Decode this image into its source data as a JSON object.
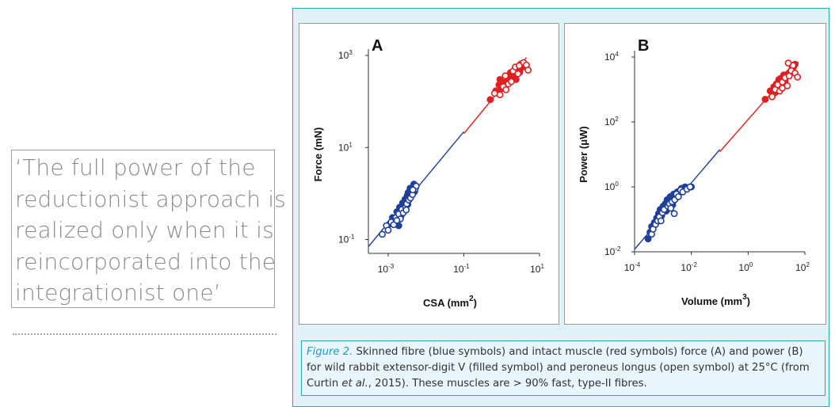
{
  "pull_quote": {
    "lines": [
      "‘The full power of the",
      "reductionist approach is",
      "realized only when it is",
      "reincorporated into the",
      "integrationist one’"
    ]
  },
  "caption": {
    "figure_label": "Figure 2.",
    "text_1": " Skinned fibre (blue symbols) and intact muscle (red symbols) force (A) and power (B) for wild rabbit extensor-digit V (filled symbol) and peroneus longus (open symbol) at 25°C (from Curtin ",
    "et_al": "et al.",
    "text_2": ", 2015). These muscles are > 90% fast, type-II fibres."
  },
  "colors": {
    "skinned": "#1f3f9a",
    "intact": "#e02020",
    "panel_border": "#2aa6bd",
    "panel_bg": "#dff2f8"
  },
  "chart_data": [
    {
      "type": "scatter",
      "panel_label": "A",
      "xlabel_main": "CSA (mm",
      "xlabel_sup": "2",
      "xlabel_end": ")",
      "ylabel": "Force (mN)",
      "x_scale": "log",
      "y_scale": "log",
      "xlim": [
        0.0003,
        10
      ],
      "ylim": [
        0.05,
        1000
      ],
      "x_ticks": [
        {
          "v": 0.001,
          "base": "10",
          "exp": "-3"
        },
        {
          "v": 0.1,
          "base": "10",
          "exp": "-1"
        },
        {
          "v": 10,
          "base": "10",
          "exp": "1"
        }
      ],
      "y_ticks": [
        {
          "v": 0.1,
          "base": "10",
          "exp": "-1"
        },
        {
          "v": 10,
          "base": "10",
          "exp": "1"
        },
        {
          "v": 1000,
          "base": "10",
          "exp": "3"
        }
      ],
      "fit_lines": [
        {
          "name": "skinned",
          "x": [
            0.0003,
            0.1
          ],
          "y": [
            0.07,
            22
          ]
        },
        {
          "name": "intact",
          "x": [
            0.1,
            4.5
          ],
          "y": [
            20,
            900
          ]
        }
      ],
      "series": [
        {
          "group": "skinned",
          "filled": true,
          "points": [
            [
              0.0011,
              0.22
            ],
            [
              0.0013,
              0.3
            ],
            [
              0.0015,
              0.26
            ],
            [
              0.0017,
              0.4
            ],
            [
              0.0018,
              0.32
            ],
            [
              0.002,
              0.5
            ],
            [
              0.0022,
              0.42
            ],
            [
              0.0024,
              0.62
            ],
            [
              0.0026,
              0.55
            ],
            [
              0.0028,
              0.75
            ],
            [
              0.003,
              0.66
            ],
            [
              0.0032,
              0.9
            ],
            [
              0.0034,
              1.05
            ],
            [
              0.0036,
              0.85
            ],
            [
              0.0038,
              1.3
            ],
            [
              0.0042,
              1.15
            ],
            [
              0.0046,
              1.4
            ],
            [
              0.005,
              1.1
            ],
            [
              0.0022,
              0.33
            ],
            [
              0.0027,
              0.48
            ],
            [
              0.0033,
              0.58
            ],
            [
              0.0041,
              0.92
            ],
            [
              0.0019,
              0.2
            ],
            [
              0.0048,
              1.6
            ]
          ]
        },
        {
          "group": "skinned",
          "filled": false,
          "points": [
            [
              0.0007,
              0.13
            ],
            [
              0.0009,
              0.2
            ],
            [
              0.001,
              0.16
            ],
            [
              0.0012,
              0.24
            ],
            [
              0.0014,
              0.21
            ],
            [
              0.0016,
              0.3
            ],
            [
              0.0019,
              0.36
            ],
            [
              0.0021,
              0.28
            ],
            [
              0.0023,
              0.45
            ],
            [
              0.0025,
              0.38
            ],
            [
              0.0029,
              0.5
            ],
            [
              0.0031,
              0.6
            ],
            [
              0.0035,
              0.72
            ],
            [
              0.0039,
              0.8
            ],
            [
              0.0044,
              0.95
            ],
            [
              0.0052,
              1.25
            ],
            [
              0.0055,
              1.45
            ],
            [
              0.003,
              0.44
            ],
            [
              0.0017,
              0.26
            ],
            [
              0.0045,
              1.2
            ]
          ]
        },
        {
          "group": "intact",
          "filled": true,
          "points": [
            [
              0.5,
              110
            ],
            [
              0.7,
              170
            ],
            [
              0.85,
              230
            ],
            [
              1.0,
              190
            ],
            [
              1.2,
              260
            ],
            [
              1.4,
              320
            ],
            [
              1.6,
              290
            ],
            [
              1.9,
              380
            ],
            [
              2.2,
              350
            ],
            [
              2.6,
              470
            ],
            [
              3.0,
              430
            ],
            [
              3.4,
              540
            ],
            [
              0.9,
              300
            ],
            [
              1.7,
              420
            ],
            [
              2.4,
              300
            ]
          ]
        },
        {
          "group": "intact",
          "filled": false,
          "points": [
            [
              0.65,
              150
            ],
            [
              0.9,
              140
            ],
            [
              1.1,
              210
            ],
            [
              1.3,
              180
            ],
            [
              1.5,
              240
            ],
            [
              1.8,
              270
            ],
            [
              2.0,
              460
            ],
            [
              2.3,
              560
            ],
            [
              2.7,
              400
            ],
            [
              3.2,
              650
            ],
            [
              3.8,
              700
            ],
            [
              4.5,
              620
            ],
            [
              5.0,
              480
            ],
            [
              2.9,
              600
            ],
            [
              1.25,
              360
            ]
          ]
        }
      ]
    },
    {
      "type": "scatter",
      "panel_label": "B",
      "xlabel_main": "Volume (mm",
      "xlabel_sup": "3",
      "xlabel_end": ")",
      "ylabel": "Power (μW)",
      "x_scale": "log",
      "y_scale": "log",
      "xlim": [
        0.0001,
        100
      ],
      "ylim": [
        0.01,
        10000
      ],
      "x_ticks": [
        {
          "v": 0.0001,
          "base": "10",
          "exp": "-4"
        },
        {
          "v": 0.01,
          "base": "10",
          "exp": "-2"
        },
        {
          "v": 1,
          "base": "10",
          "exp": "0"
        },
        {
          "v": 100,
          "base": "10",
          "exp": "2"
        }
      ],
      "y_ticks": [
        {
          "v": 0.01,
          "base": "10",
          "exp": "-2"
        },
        {
          "v": 1,
          "base": "10",
          "exp": "0"
        },
        {
          "v": 100,
          "base": "10",
          "exp": "2"
        },
        {
          "v": 10000,
          "base": "10",
          "exp": "4"
        }
      ],
      "fit_lines": [
        {
          "name": "skinned",
          "x": [
            0.0001,
            0.1
          ],
          "y": [
            0.012,
            14
          ]
        },
        {
          "name": "intact",
          "x": [
            0.1,
            60
          ],
          "y": [
            12,
            7000
          ]
        }
      ],
      "series": [
        {
          "group": "skinned",
          "filled": true,
          "points": [
            [
              0.0003,
              0.025
            ],
            [
              0.00035,
              0.04
            ],
            [
              0.0004,
              0.06
            ],
            [
              0.0005,
              0.08
            ],
            [
              0.0006,
              0.11
            ],
            [
              0.0007,
              0.15
            ],
            [
              0.0008,
              0.2
            ],
            [
              0.0009,
              0.13
            ],
            [
              0.001,
              0.25
            ],
            [
              0.0012,
              0.3
            ],
            [
              0.0014,
              0.4
            ],
            [
              0.0016,
              0.35
            ],
            [
              0.0018,
              0.5
            ],
            [
              0.002,
              0.45
            ],
            [
              0.0024,
              0.6
            ],
            [
              0.0028,
              0.55
            ],
            [
              0.0032,
              0.7
            ],
            [
              0.0038,
              0.75
            ],
            [
              0.0045,
              0.9
            ],
            [
              0.006,
              1.0
            ],
            [
              0.008,
              0.95
            ],
            [
              0.01,
              1.0
            ],
            [
              0.0013,
              0.18
            ],
            [
              0.0022,
              0.28
            ]
          ]
        },
        {
          "group": "skinned",
          "filled": false,
          "points": [
            [
              0.0004,
              0.035
            ],
            [
              0.00045,
              0.05
            ],
            [
              0.00055,
              0.07
            ],
            [
              0.00065,
              0.09
            ],
            [
              0.00075,
              0.12
            ],
            [
              0.00085,
              0.09
            ],
            [
              0.00095,
              0.16
            ],
            [
              0.0011,
              0.2
            ],
            [
              0.0015,
              0.25
            ],
            [
              0.0017,
              0.3
            ],
            [
              0.0019,
              0.22
            ],
            [
              0.0021,
              0.35
            ],
            [
              0.0026,
              0.4
            ],
            [
              0.003,
              0.6
            ],
            [
              0.0035,
              0.5
            ],
            [
              0.0042,
              0.8
            ],
            [
              0.005,
              0.7
            ],
            [
              0.007,
              0.85
            ],
            [
              0.009,
              1.0
            ],
            [
              0.0025,
              0.15
            ]
          ]
        },
        {
          "group": "intact",
          "filled": true,
          "points": [
            [
              4,
              500
            ],
            [
              6,
              900
            ],
            [
              8,
              1200
            ],
            [
              10,
              1500
            ],
            [
              12,
              2000
            ],
            [
              14,
              2200
            ],
            [
              18,
              2800
            ],
            [
              25,
              3000
            ],
            [
              30,
              3500
            ],
            [
              35,
              4500
            ],
            [
              40,
              5000
            ],
            [
              45,
              6000
            ],
            [
              20,
              1800
            ],
            [
              9,
              800
            ]
          ]
        },
        {
          "group": "intact",
          "filled": false,
          "points": [
            [
              7,
              600
            ],
            [
              9,
              1000
            ],
            [
              11,
              1400
            ],
            [
              13,
              900
            ],
            [
              16,
              1700
            ],
            [
              20,
              2300
            ],
            [
              24,
              1300
            ],
            [
              28,
              2600
            ],
            [
              33,
              3800
            ],
            [
              38,
              5500
            ],
            [
              45,
              3200
            ],
            [
              55,
              2400
            ],
            [
              16,
              1100
            ],
            [
              26,
              6500
            ]
          ]
        }
      ]
    }
  ]
}
